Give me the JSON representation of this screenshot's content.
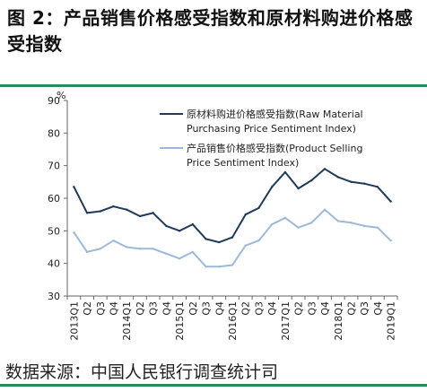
{
  "figure": {
    "title": "图 2：产品销售价格感受指数和原材料购进价格感受指数",
    "source": "数据来源：中国人民银行调查统计司"
  },
  "chart_data": {
    "type": "line",
    "ylabel": "%",
    "ylim": [
      30,
      90
    ],
    "yticks": [
      30,
      40,
      50,
      60,
      70,
      80,
      90
    ],
    "grid": false,
    "legend_position": "top-right",
    "categories": [
      "2013Q1",
      "Q2",
      "Q3",
      "Q4",
      "2014Q1",
      "Q2",
      "Q3",
      "Q4",
      "2015Q1",
      "Q2",
      "Q3",
      "Q4",
      "2016Q1",
      "Q2",
      "Q3",
      "Q4",
      "2017Q1",
      "Q2",
      "Q3",
      "Q4",
      "2018Q1",
      "Q2",
      "Q3",
      "Q4",
      "2019Q1"
    ],
    "series": [
      {
        "name": "原材料购进价格感受指数(Raw Material Purchasing Price Sentiment Index)",
        "legend_lines": [
          "原材料购进价格感受指数(Raw  Material",
          "Purchasing Price Sentiment Index)"
        ],
        "color": "#1f3a5a",
        "values": [
          63.5,
          55.5,
          56,
          57.5,
          56.5,
          54.5,
          55.5,
          51.5,
          50,
          52,
          47.5,
          46.5,
          48,
          55,
          57,
          63.5,
          68,
          63,
          65.5,
          69,
          66.5,
          65,
          64.5,
          63.5,
          59
        ]
      },
      {
        "name": "产品销售价格感受指数(Product Selling Price Sentiment Index)",
        "legend_lines": [
          "产品销售价格感受指数(Product Selling",
          "Price Sentiment Index)"
        ],
        "color": "#9cb9dc",
        "values": [
          49.5,
          43.5,
          44.5,
          47,
          45,
          44.5,
          44.5,
          43,
          41.5,
          43.5,
          39,
          39,
          39.5,
          45.5,
          47,
          52,
          54,
          51,
          52.5,
          56.5,
          53,
          52.5,
          51.5,
          51,
          47
        ]
      }
    ]
  }
}
